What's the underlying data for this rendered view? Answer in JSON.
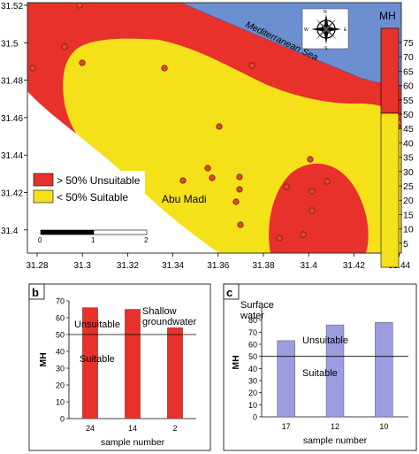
{
  "map": {
    "sea_label": "Mediterranean Sea",
    "town_label": "Abu Madi",
    "y_ticks": [
      "31.52",
      "31.5",
      "31.48",
      "31.46",
      "31.44",
      "31.42",
      "31.4"
    ],
    "x_ticks": [
      "31.28",
      "31.3",
      "31.32",
      "31.34",
      "31.36",
      "31.38",
      "31.4",
      "31.42",
      "31.44"
    ],
    "scale_labels": [
      "0",
      "1",
      "2"
    ],
    "compass": {
      "n": "N",
      "s": "S",
      "e": "E",
      "w": "W"
    },
    "legend": [
      {
        "label": "> 50% Unsuitable",
        "color": "#e8312a"
      },
      {
        "label": "< 50% Suitable",
        "color": "#f5e11a"
      }
    ],
    "colorbar": {
      "title": "MH",
      "ticks": [
        "75",
        "70",
        "65",
        "60",
        "55",
        "50",
        "45",
        "40",
        "35",
        "30",
        "25",
        "20",
        "15",
        "10",
        "5"
      ]
    },
    "colors": {
      "unsuitable": "#e8312a",
      "suitable": "#f5e11a",
      "sea": "#6b8fd0",
      "sample_point": "#d94b33"
    }
  },
  "chart_data": [
    {
      "panel_label": "b",
      "type": "bar",
      "categories": [
        "24",
        "14",
        "2"
      ],
      "values": [
        66,
        65,
        54
      ],
      "ylim": [
        0,
        70
      ],
      "yticks": [
        "0",
        "10",
        "20",
        "30",
        "40",
        "50",
        "60",
        "70"
      ],
      "threshold": 50,
      "ylabel": "MH",
      "xlabel": "sample number",
      "annotations": [
        "Shallow",
        "groundwater",
        "Unsuitable",
        "Suitable"
      ],
      "color": "#e8312a"
    },
    {
      "panel_label": "c",
      "type": "bar",
      "categories": [
        "17",
        "12",
        "10"
      ],
      "values": [
        63,
        76,
        78
      ],
      "ylim": [
        0,
        90
      ],
      "yticks": [
        "0",
        "10",
        "20",
        "30",
        "40",
        "50",
        "60",
        "70",
        "80"
      ],
      "threshold": 50,
      "ylabel": "MH",
      "xlabel": "sample number",
      "annotations": [
        "Surface",
        "water",
        "Unsuitable",
        "Suitable"
      ],
      "color": "#9a9ee0"
    }
  ]
}
